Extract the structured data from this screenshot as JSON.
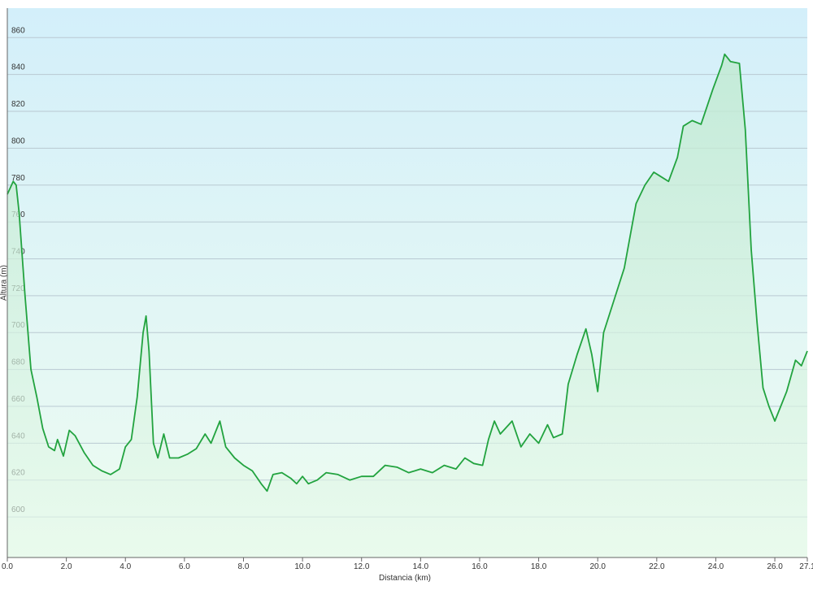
{
  "chart_data": {
    "type": "line",
    "xlabel": "Distancia (km)",
    "ylabel": "Altura (m)",
    "x": [
      0.0,
      0.2,
      0.3,
      0.4,
      0.6,
      0.8,
      1.0,
      1.2,
      1.4,
      1.6,
      1.7,
      1.9,
      2.1,
      2.3,
      2.6,
      2.9,
      3.2,
      3.5,
      3.8,
      4.0,
      4.2,
      4.4,
      4.6,
      4.7,
      4.8,
      4.95,
      5.1,
      5.3,
      5.5,
      5.8,
      6.1,
      6.4,
      6.7,
      6.9,
      7.2,
      7.4,
      7.7,
      8.0,
      8.3,
      8.6,
      8.8,
      9.0,
      9.3,
      9.6,
      9.8,
      10.0,
      10.2,
      10.5,
      10.8,
      11.2,
      11.6,
      12.0,
      12.4,
      12.8,
      13.2,
      13.6,
      14.0,
      14.4,
      14.8,
      15.2,
      15.5,
      15.8,
      16.1,
      16.3,
      16.5,
      16.7,
      17.1,
      17.4,
      17.7,
      18.0,
      18.3,
      18.5,
      18.8,
      19.0,
      19.3,
      19.6,
      19.8,
      20.0,
      20.2,
      20.5,
      20.9,
      21.3,
      21.6,
      21.9,
      22.1,
      22.4,
      22.7,
      22.9,
      23.2,
      23.5,
      23.9,
      24.2,
      24.3,
      24.5,
      24.8,
      25.0,
      25.2,
      25.4,
      25.6,
      25.8,
      26.0,
      26.2,
      26.4,
      26.7,
      26.9,
      27.1
    ],
    "values": [
      775,
      782,
      780,
      765,
      720,
      680,
      665,
      648,
      638,
      636,
      642,
      633,
      647,
      644,
      635,
      628,
      625,
      623,
      626,
      638,
      642,
      665,
      700,
      709,
      690,
      640,
      632,
      645,
      632,
      632,
      634,
      637,
      645,
      640,
      652,
      638,
      632,
      628,
      625,
      618,
      614,
      623,
      624,
      621,
      618,
      622,
      618,
      620,
      624,
      623,
      620,
      622,
      622,
      628,
      627,
      624,
      626,
      624,
      628,
      626,
      632,
      629,
      628,
      642,
      652,
      645,
      652,
      638,
      645,
      640,
      650,
      643,
      645,
      672,
      688,
      702,
      688,
      668,
      700,
      715,
      735,
      770,
      780,
      787,
      785,
      782,
      795,
      812,
      815,
      813,
      832,
      845,
      851,
      847,
      846,
      810,
      745,
      705,
      670,
      660,
      652,
      660,
      668,
      685,
      682,
      690
    ],
    "color": "#22a33f",
    "xlim": [
      0,
      27.1
    ],
    "xticks": [
      {
        "value": 0,
        "label": "0.0"
      },
      {
        "value": 2,
        "label": "2.0"
      },
      {
        "value": 4,
        "label": "4.0"
      },
      {
        "value": 6,
        "label": "6.0"
      },
      {
        "value": 8,
        "label": "8.0"
      },
      {
        "value": 10,
        "label": "10.0"
      },
      {
        "value": 12,
        "label": "12.0"
      },
      {
        "value": 14,
        "label": "14.0"
      },
      {
        "value": 16,
        "label": "16.0"
      },
      {
        "value": 18,
        "label": "18.0"
      },
      {
        "value": 20,
        "label": "20.0"
      },
      {
        "value": 22,
        "label": "22.0"
      },
      {
        "value": 24,
        "label": "24.0"
      },
      {
        "value": 26,
        "label": "26.0"
      },
      27.1
    ],
    "ylim": [
      578,
      876
    ],
    "yticks": [
      600,
      620,
      640,
      660,
      680,
      700,
      720,
      740,
      760,
      780,
      800,
      820,
      840,
      860
    ],
    "grid": true
  }
}
